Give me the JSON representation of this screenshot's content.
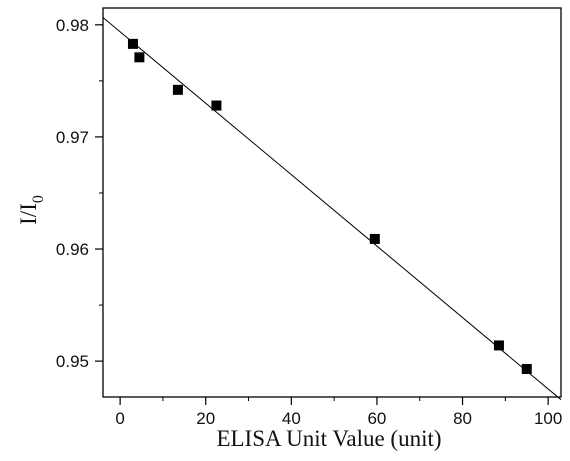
{
  "chart_data": {
    "type": "scatter",
    "xlabel": "ELISA Unit Value (unit)",
    "ylabel": {
      "main": "I/I",
      "subscript": "0"
    },
    "xlim": [
      -4,
      103
    ],
    "ylim": [
      0.9468,
      0.9815
    ],
    "x_ticks": [
      0,
      20,
      40,
      60,
      80,
      100
    ],
    "x_tick_labels": [
      "0",
      "20",
      "40",
      "60",
      "80",
      "100"
    ],
    "y_ticks": [
      0.95,
      0.96,
      0.97,
      0.98
    ],
    "y_tick_labels": [
      "0.95",
      "0.96",
      "0.97",
      "0.98"
    ],
    "grid": false,
    "legend": "none",
    "series": [
      {
        "marker": "filled-square",
        "color": "#000000",
        "points": [
          {
            "x": 3.0,
            "y": 0.9783
          },
          {
            "x": 4.5,
            "y": 0.9771
          },
          {
            "x": 13.5,
            "y": 0.9742
          },
          {
            "x": 22.5,
            "y": 0.9728
          },
          {
            "x": 59.5,
            "y": 0.9609
          },
          {
            "x": 88.5,
            "y": 0.9514
          },
          {
            "x": 95.0,
            "y": 0.9493
          }
        ]
      }
    ],
    "fit_line": {
      "style": "solid",
      "color": "#000000",
      "x": [
        -4,
        103
      ],
      "y": [
        0.98065,
        0.94656
      ]
    }
  }
}
